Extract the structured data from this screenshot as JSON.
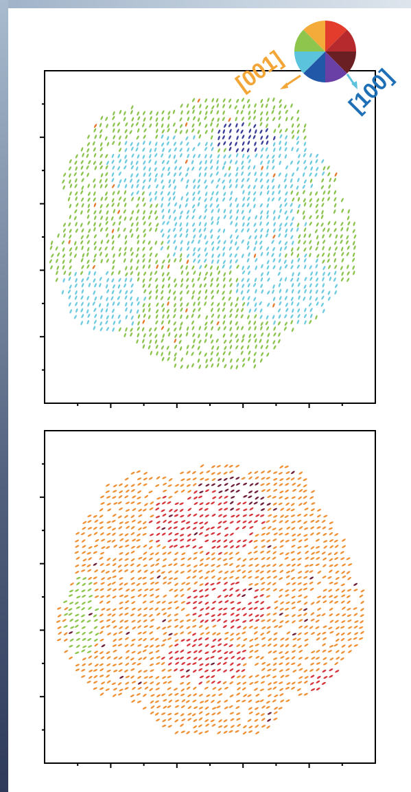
{
  "figure": {
    "axis_labels": {
      "a": "[001]",
      "b": "[100]"
    },
    "colors": {
      "axis_a": "#f3a637",
      "axis_b": "#1f6fb6",
      "wheel": [
        "#e33c2c",
        "#b62a2e",
        "#6a1f22",
        "#6a3fa6",
        "#2258a8",
        "#5cc3dd",
        "#8dc54d",
        "#f5ab3a"
      ],
      "panel_top_primary": "#8cc44f",
      "panel_top_secondary": "#6ecbe0",
      "panel_top_minor": "#3a3d97",
      "panel_top_rare": "#e57a2f",
      "panel_bottom_primary": "#ee9137",
      "panel_bottom_secondary": "#d6363c",
      "panel_bottom_minor": "#8dc54d",
      "panel_bottom_rare": "#6e1f3a"
    },
    "panels": [
      {
        "id": "top",
        "description_color_dominance": [
          "green",
          "cyan",
          "navy"
        ]
      },
      {
        "id": "bottom",
        "description_color_dominance": [
          "orange",
          "red",
          "green"
        ]
      }
    ]
  }
}
